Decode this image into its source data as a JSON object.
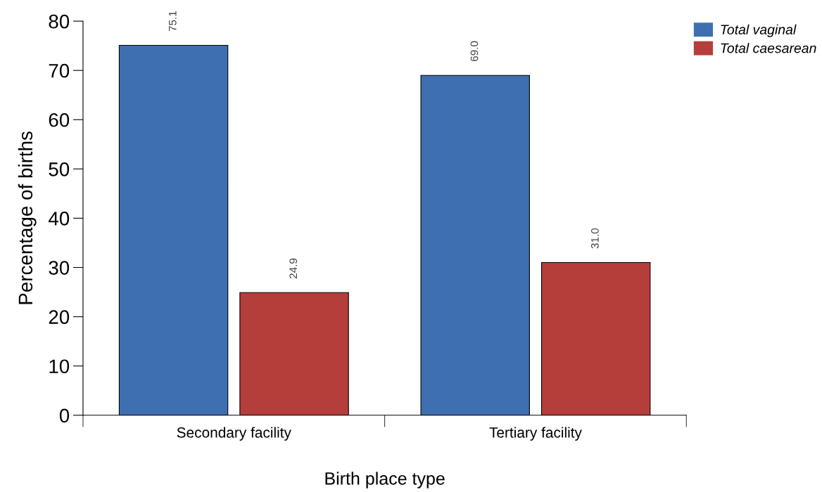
{
  "chart_data": {
    "type": "bar",
    "xlabel": "Birth place type",
    "ylabel": "Percentage of births",
    "categories": [
      "Secondary facility",
      "Tertiary facility"
    ],
    "series": [
      {
        "name": "Total vaginal",
        "color": "#3e6fb0",
        "values": [
          75.1,
          69.0
        ],
        "value_labels": [
          "75.1",
          "69.0"
        ]
      },
      {
        "name": "Total caesarean",
        "color": "#b53e3b",
        "values": [
          24.9,
          31.0
        ],
        "value_labels": [
          "24.9",
          "31.0"
        ]
      }
    ],
    "ylim": [
      0,
      80
    ],
    "yticks": [
      0,
      10,
      20,
      30,
      40,
      50,
      60,
      70,
      80
    ],
    "grid": false,
    "legend": "top right"
  }
}
